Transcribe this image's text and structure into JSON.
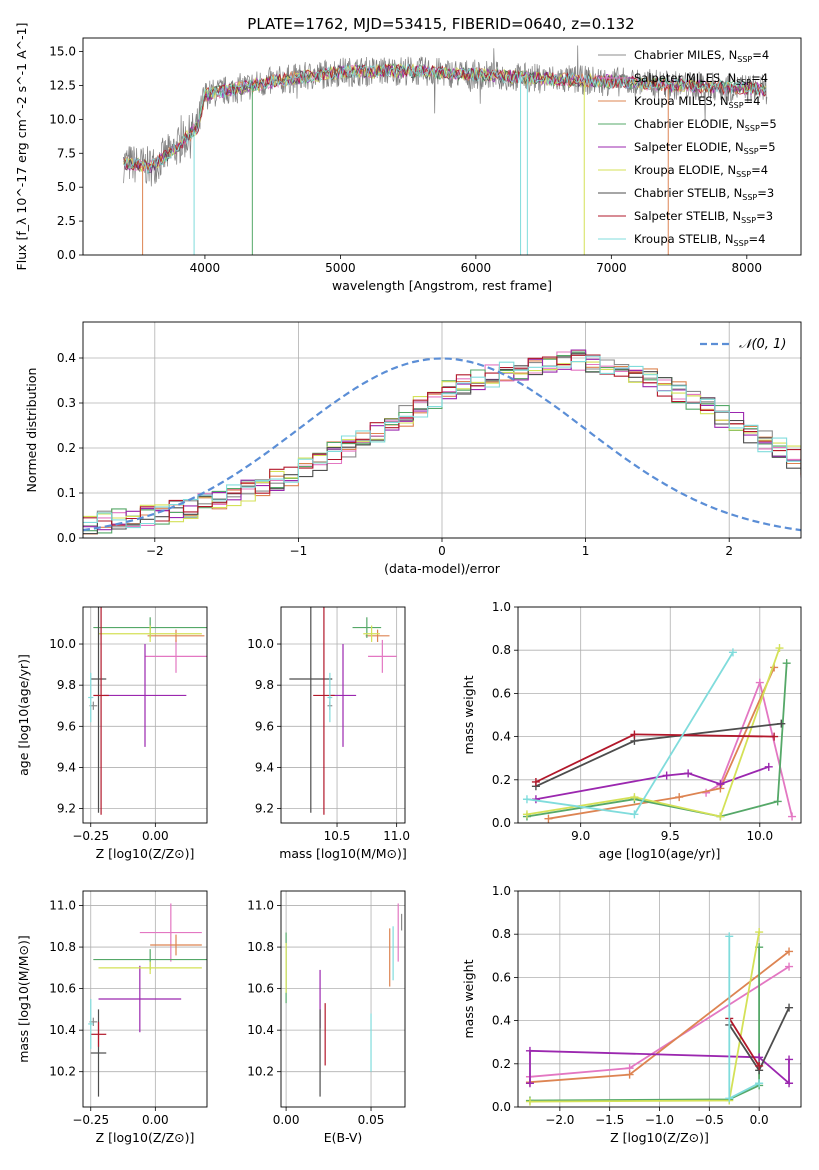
{
  "figure_title": "PLATE=1762, MJD=53415, FIBERID=0640, z=0.132",
  "colors": {
    "Chabrier MILES": "#8c8c8c",
    "Salpeter MILES": "#e377c2",
    "Kroupa MILES": "#dd8452",
    "Chabrier ELODIE": "#55a868",
    "Salpeter ELODIE": "#9b27af",
    "Kroupa ELODIE": "#d4e157",
    "Chabrier STELIB": "#4d4d4d",
    "Salpeter STELIB": "#b2182b",
    "Kroupa STELIB": "#80dcdc",
    "normal": "#5b8ed6"
  },
  "chart_data": [
    {
      "id": "spectrum",
      "type": "line",
      "title": "PLATE=1762, MJD=53415, FIBERID=0640, z=0.132",
      "xlabel": "wavelength [Angstrom, rest frame]",
      "ylabel": "Flux [f_λ 10^-17 erg cm^-2 s^-1 A^-1]",
      "xlim": [
        3100,
        8400
      ],
      "ylim": [
        0,
        16
      ],
      "xticks": [
        4000,
        5000,
        6000,
        7000,
        8000
      ],
      "yticks": [
        0.0,
        2.5,
        5.0,
        7.5,
        10.0,
        12.5,
        15.0
      ],
      "legend_position": "top-right",
      "legend": [
        {
          "name": "Chabrier MILES",
          "n": "4"
        },
        {
          "name": "Salpeter MILES",
          "n": "4"
        },
        {
          "name": "Kroupa MILES",
          "n": "4"
        },
        {
          "name": "Chabrier ELODIE",
          "n": "5"
        },
        {
          "name": "Salpeter ELODIE",
          "n": "5"
        },
        {
          "name": "Kroupa ELODIE",
          "n": "4"
        },
        {
          "name": "Chabrier STELIB",
          "n": "3"
        },
        {
          "name": "Salpeter STELIB",
          "n": "3"
        },
        {
          "name": "Kroupa STELIB",
          "n": "4"
        }
      ],
      "continuum": {
        "x": [
          3400,
          3600,
          3800,
          3950,
          4000,
          4200,
          4500,
          5000,
          5500,
          6000,
          6500,
          7000,
          7500,
          8000,
          8150
        ],
        "y": [
          6.8,
          6.5,
          8.0,
          9.5,
          11.8,
          12.2,
          12.8,
          13.5,
          13.6,
          13.3,
          13.0,
          12.8,
          12.5,
          12.3,
          12.2
        ]
      }
    },
    {
      "id": "residuals",
      "type": "histogram",
      "xlabel": "(data-model)/error",
      "ylabel": "Normed distribution",
      "xlim": [
        -2.5,
        2.5
      ],
      "ylim": [
        0,
        0.48
      ],
      "xticks": [
        -2,
        -1,
        0,
        1,
        2
      ],
      "yticks": [
        0.0,
        0.1,
        0.2,
        0.3,
        0.4
      ],
      "grid": true,
      "legend_position": "top-right",
      "legend": "𝒩(0, 1)",
      "bin_width": 0.1,
      "bin_start": -2.5,
      "base_values": [
        0.03,
        0.035,
        0.04,
        0.045,
        0.05,
        0.055,
        0.06,
        0.068,
        0.075,
        0.085,
        0.095,
        0.105,
        0.115,
        0.13,
        0.14,
        0.155,
        0.17,
        0.19,
        0.205,
        0.22,
        0.235,
        0.25,
        0.27,
        0.29,
        0.31,
        0.33,
        0.34,
        0.35,
        0.36,
        0.37,
        0.375,
        0.38,
        0.385,
        0.39,
        0.395,
        0.39,
        0.385,
        0.375,
        0.365,
        0.355,
        0.34,
        0.325,
        0.31,
        0.29,
        0.27,
        0.255,
        0.235,
        0.215,
        0.2,
        0.18,
        0.16,
        0.145,
        0.13,
        0.115,
        0.1,
        0.09,
        0.08,
        0.07,
        0.06,
        0.05
      ],
      "normal_pdf": {
        "mu": 0,
        "sigma": 1
      }
    },
    {
      "id": "age-vs-Z",
      "type": "errorbar",
      "xlabel": "Z [log10(Z/Z⊙)]",
      "ylabel": "age [log10(age/yr)]",
      "xlim": [
        -0.28,
        0.2
      ],
      "ylim": [
        9.13,
        10.18
      ],
      "xticks": [
        -0.25,
        0.0
      ],
      "yticks": [
        9.2,
        9.4,
        9.6,
        9.8,
        10.0
      ],
      "grid": true,
      "points": [
        {
          "series": "Chabrier MILES",
          "x": -0.24,
          "y": 9.7,
          "xerr": 0.015,
          "yerr": 0.02
        },
        {
          "series": "Salpeter MILES",
          "x": 0.08,
          "y": 9.94,
          "xerr": 0.12,
          "yerr": 0.08
        },
        {
          "series": "Kroupa MILES",
          "x": 0.08,
          "y": 10.04,
          "xerr": 0.11,
          "yerr": 0.03
        },
        {
          "series": "Chabrier ELODIE",
          "x": -0.02,
          "y": 10.08,
          "xerr": 0.22,
          "yerr": 0.05
        },
        {
          "series": "Salpeter ELODIE",
          "x": -0.04,
          "y": 9.75,
          "xerr": 0.16,
          "yerr": 0.25
        },
        {
          "series": "Kroupa ELODIE",
          "x": -0.02,
          "y": 10.05,
          "xerr": 0.2,
          "yerr": 0.04
        },
        {
          "series": "Chabrier STELIB",
          "x": -0.22,
          "y": 9.83,
          "xerr": 0.03,
          "yerr": 0.65
        },
        {
          "series": "Salpeter STELIB",
          "x": -0.21,
          "y": 9.75,
          "xerr": 0.03,
          "yerr": 0.58
        },
        {
          "series": "Kroupa STELIB",
          "x": -0.25,
          "y": 9.74,
          "xerr": 0.01,
          "yerr": 0.12
        }
      ]
    },
    {
      "id": "age-vs-mass",
      "type": "errorbar",
      "xlabel": "mass [log10(M/M⊙)]",
      "ylabel": "",
      "xlim": [
        10.03,
        11.07
      ],
      "ylim": [
        9.13,
        10.18
      ],
      "xticks": [
        10.5,
        11.0
      ],
      "yticks": [
        9.2,
        9.4,
        9.6,
        9.8,
        10.0
      ],
      "grid": true,
      "points": [
        {
          "series": "Chabrier MILES",
          "x": 10.44,
          "y": 9.7,
          "xerr": 0.02,
          "yerr": 0.02
        },
        {
          "series": "Salpeter MILES",
          "x": 10.88,
          "y": 9.94,
          "xerr": 0.12,
          "yerr": 0.08
        },
        {
          "series": "Kroupa MILES",
          "x": 10.84,
          "y": 10.04,
          "xerr": 0.1,
          "yerr": 0.03
        },
        {
          "series": "Chabrier ELODIE",
          "x": 10.75,
          "y": 10.08,
          "xerr": 0.12,
          "yerr": 0.05
        },
        {
          "series": "Salpeter ELODIE",
          "x": 10.55,
          "y": 9.75,
          "xerr": 0.11,
          "yerr": 0.25
        },
        {
          "series": "Kroupa ELODIE",
          "x": 10.79,
          "y": 10.05,
          "xerr": 0.07,
          "yerr": 0.04
        },
        {
          "series": "Chabrier STELIB",
          "x": 10.28,
          "y": 9.83,
          "xerr": 0.18,
          "yerr": 0.65
        },
        {
          "series": "Salpeter STELIB",
          "x": 10.39,
          "y": 9.75,
          "xerr": 0.09,
          "yerr": 0.58
        },
        {
          "series": "Kroupa STELIB",
          "x": 10.44,
          "y": 9.74,
          "xerr": 0.02,
          "yerr": 0.12
        }
      ]
    },
    {
      "id": "mass-weight-vs-age",
      "type": "line",
      "xlabel": "age [log10(age/yr)]",
      "ylabel": "mass weight",
      "xlim": [
        8.65,
        10.23
      ],
      "ylim": [
        0,
        1.0
      ],
      "xticks": [
        9.0,
        9.5,
        10.0
      ],
      "yticks": [
        0.0,
        0.2,
        0.4,
        0.6,
        0.8,
        1.0
      ],
      "grid": true,
      "series": [
        {
          "name": "Salpeter MILES",
          "x": [
            9.7,
            9.78,
            10.0,
            10.18
          ],
          "y": [
            0.14,
            0.18,
            0.65,
            0.03
          ]
        },
        {
          "name": "Kroupa MILES",
          "x": [
            8.82,
            9.55,
            9.78,
            10.08
          ],
          "y": [
            0.02,
            0.12,
            0.16,
            0.72
          ]
        },
        {
          "name": "Chabrier ELODIE",
          "x": [
            8.7,
            9.3,
            9.78,
            10.1,
            10.15
          ],
          "y": [
            0.03,
            0.11,
            0.03,
            0.1,
            0.74
          ]
        },
        {
          "name": "Salpeter ELODIE",
          "x": [
            8.75,
            9.48,
            9.6,
            9.78,
            10.05
          ],
          "y": [
            0.11,
            0.22,
            0.23,
            0.18,
            0.26
          ]
        },
        {
          "name": "Kroupa ELODIE",
          "x": [
            8.7,
            9.3,
            9.78,
            10.11
          ],
          "y": [
            0.04,
            0.12,
            0.03,
            0.81
          ]
        },
        {
          "name": "Chabrier STELIB",
          "x": [
            8.75,
            9.3,
            10.12
          ],
          "y": [
            0.17,
            0.38,
            0.46
          ]
        },
        {
          "name": "Salpeter STELIB",
          "x": [
            8.75,
            9.3,
            10.08
          ],
          "y": [
            0.19,
            0.41,
            0.4
          ]
        },
        {
          "name": "Kroupa STELIB",
          "x": [
            8.7,
            9.3,
            9.85
          ],
          "y": [
            0.11,
            0.04,
            0.79
          ]
        }
      ]
    },
    {
      "id": "mass-vs-Z",
      "type": "errorbar",
      "xlabel": "Z [log10(Z/Z⊙)]",
      "ylabel": "mass [log10(M/M⊙)]",
      "xlim": [
        -0.28,
        0.2
      ],
      "ylim": [
        10.03,
        11.07
      ],
      "xticks": [
        -0.25,
        0.0
      ],
      "yticks": [
        10.2,
        10.4,
        10.6,
        10.8,
        11.0
      ],
      "grid": true,
      "points": [
        {
          "series": "Chabrier MILES",
          "x": -0.24,
          "y": 10.44,
          "xerr": 0.015,
          "yerr": 0.02
        },
        {
          "series": "Salpeter MILES",
          "x": 0.06,
          "y": 10.87,
          "xerr": 0.12,
          "yerr": 0.14
        },
        {
          "series": "Kroupa MILES",
          "x": 0.08,
          "y": 10.81,
          "xerr": 0.1,
          "yerr": 0.05
        },
        {
          "series": "Chabrier ELODIE",
          "x": -0.02,
          "y": 10.74,
          "xerr": 0.22,
          "yerr": 0.05
        },
        {
          "series": "Salpeter ELODIE",
          "x": -0.06,
          "y": 10.55,
          "xerr": 0.16,
          "yerr": 0.16
        },
        {
          "series": "Kroupa ELODIE",
          "x": -0.02,
          "y": 10.7,
          "xerr": 0.2,
          "yerr": 0.03
        },
        {
          "series": "Chabrier STELIB",
          "x": -0.22,
          "y": 10.29,
          "xerr": 0.03,
          "yerr": 0.21
        },
        {
          "series": "Salpeter STELIB",
          "x": -0.22,
          "y": 10.38,
          "xerr": 0.03,
          "yerr": 0.06
        },
        {
          "series": "Kroupa STELIB",
          "x": -0.25,
          "y": 10.43,
          "xerr": 0.01,
          "yerr": 0.12
        }
      ]
    },
    {
      "id": "mass-vs-ebv",
      "type": "errorbar",
      "xlabel": "E(B-V)",
      "ylabel": "",
      "xlim": [
        -0.003,
        0.07
      ],
      "ylim": [
        10.03,
        11.07
      ],
      "xticks": [
        0.0,
        0.05
      ],
      "yticks": [
        10.2,
        10.4,
        10.6,
        10.8,
        11.0
      ],
      "grid": true,
      "points": [
        {
          "series": "Chabrier MILES",
          "x": 0.068,
          "y": 10.92,
          "xerr": 0,
          "yerr": 0.04
        },
        {
          "series": "Salpeter MILES",
          "x": 0.066,
          "y": 10.87,
          "xerr": 0,
          "yerr": 0.14
        },
        {
          "series": "Kroupa MILES",
          "x": 0.061,
          "y": 10.75,
          "xerr": 0,
          "yerr": 0.14
        },
        {
          "series": "Chabrier ELODIE",
          "x": 0.0,
          "y": 10.7,
          "xerr": 0,
          "yerr": 0.17
        },
        {
          "series": "Salpeter ELODIE",
          "x": 0.02,
          "y": 10.55,
          "xerr": 0,
          "yerr": 0.14
        },
        {
          "series": "Kroupa ELODIE",
          "x": 0.0,
          "y": 10.7,
          "xerr": 0,
          "yerr": 0.12
        },
        {
          "series": "Chabrier STELIB",
          "x": 0.02,
          "y": 10.29,
          "xerr": 0,
          "yerr": 0.21
        },
        {
          "series": "Salpeter STELIB",
          "x": 0.023,
          "y": 10.38,
          "xerr": 0,
          "yerr": 0.15
        },
        {
          "series": "Kroupa STELIB",
          "x": 0.05,
          "y": 10.34,
          "xerr": 0,
          "yerr": 0.14
        },
        {
          "series": "Kroupa STELIB",
          "x": 0.063,
          "y": 10.77,
          "xerr": 0,
          "yerr": 0.13
        }
      ]
    },
    {
      "id": "mass-weight-vs-Z",
      "type": "line",
      "xlabel": "Z [log10(Z/Z⊙)]",
      "ylabel": "mass weight",
      "xlim": [
        -2.42,
        0.42
      ],
      "ylim": [
        0,
        1.0
      ],
      "xticks": [
        -2.0,
        -1.5,
        -1.0,
        -0.5,
        0.0
      ],
      "yticks": [
        0.0,
        0.2,
        0.4,
        0.6,
        0.8,
        1.0
      ],
      "grid": true,
      "series": [
        {
          "name": "Salpeter MILES",
          "x": [
            -2.3,
            -1.3,
            0.3
          ],
          "y": [
            0.14,
            0.18,
            0.65
          ]
        },
        {
          "name": "Kroupa MILES",
          "x": [
            -2.3,
            -1.3,
            0.3
          ],
          "y": [
            0.115,
            0.15,
            0.72
          ]
        },
        {
          "name": "Chabrier ELODIE",
          "x": [
            -2.3,
            -0.3,
            0.0,
            0.0
          ],
          "y": [
            0.03,
            0.035,
            0.1,
            0.74
          ]
        },
        {
          "name": "Salpeter ELODIE",
          "x": [
            -2.3,
            -2.3,
            0.0,
            0.3,
            0.3
          ],
          "y": [
            0.11,
            0.26,
            0.23,
            0.11,
            0.22
          ]
        },
        {
          "name": "Kroupa ELODIE",
          "x": [
            -2.3,
            -0.3,
            0.0
          ],
          "y": [
            0.025,
            0.03,
            0.81
          ]
        },
        {
          "name": "Chabrier STELIB",
          "x": [
            -0.3,
            0.0,
            0.3
          ],
          "y": [
            0.38,
            0.17,
            0.46
          ]
        },
        {
          "name": "Salpeter STELIB",
          "x": [
            -0.3,
            0.0
          ],
          "y": [
            0.41,
            0.19
          ]
        },
        {
          "name": "Kroupa STELIB",
          "x": [
            -0.3,
            -0.3,
            0.0
          ],
          "y": [
            0.79,
            0.04,
            0.11
          ]
        }
      ]
    }
  ]
}
